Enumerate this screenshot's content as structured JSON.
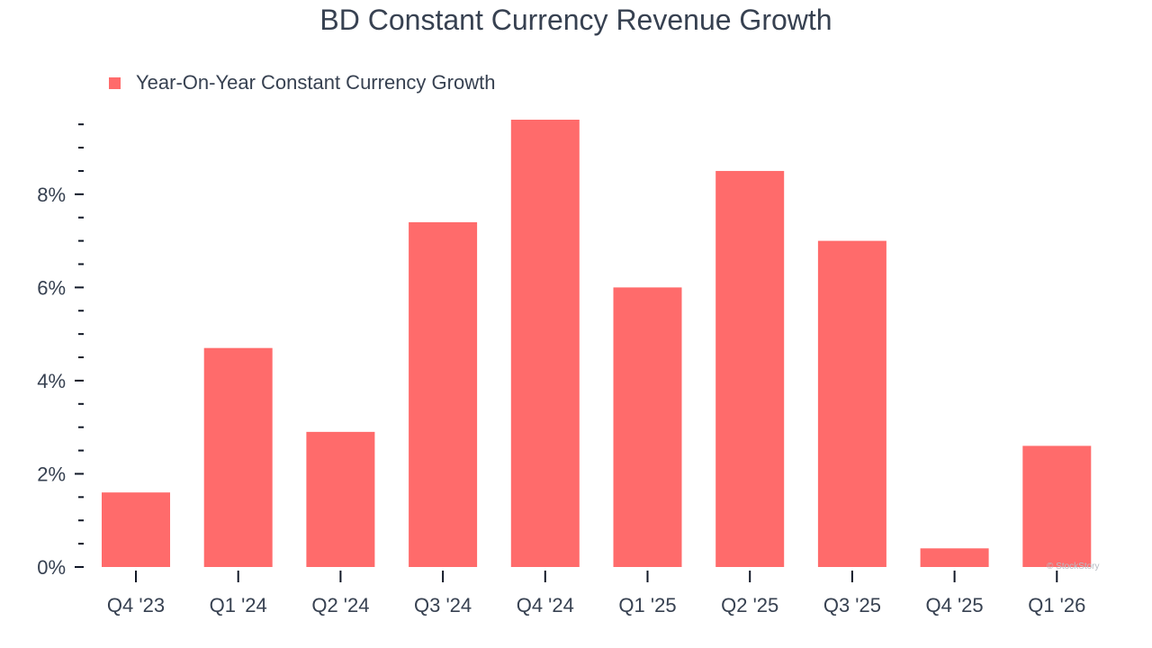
{
  "title": "BD Constant Currency Revenue Growth",
  "legend": {
    "label": "Year-On-Year Constant Currency Growth"
  },
  "watermark": "© StockStory",
  "colors": {
    "bar": "#ff6b6b",
    "text": "#374151",
    "axis": "#111827"
  },
  "chart_data": {
    "type": "bar",
    "categories": [
      "Q4 '23",
      "Q1 '24",
      "Q2 '24",
      "Q3 '24",
      "Q4 '24",
      "Q1 '25",
      "Q2 '25",
      "Q3 '25",
      "Q4 '25",
      "Q1 '26"
    ],
    "series": [
      {
        "name": "Year-On-Year Constant Currency Growth",
        "values": [
          1.6,
          4.7,
          2.9,
          7.4,
          9.6,
          6.0,
          8.5,
          7.0,
          0.4,
          2.6
        ]
      }
    ],
    "y_ticks": [
      0,
      2,
      4,
      6,
      8
    ],
    "y_tick_labels": [
      "0%",
      "2%",
      "4%",
      "6%",
      "8%"
    ],
    "y_minor_step": 0.5,
    "ylim": [
      0,
      9.6
    ],
    "title": "BD Constant Currency Revenue Growth",
    "xlabel": "",
    "ylabel": "",
    "grid": false,
    "legend_position": "top-left"
  }
}
